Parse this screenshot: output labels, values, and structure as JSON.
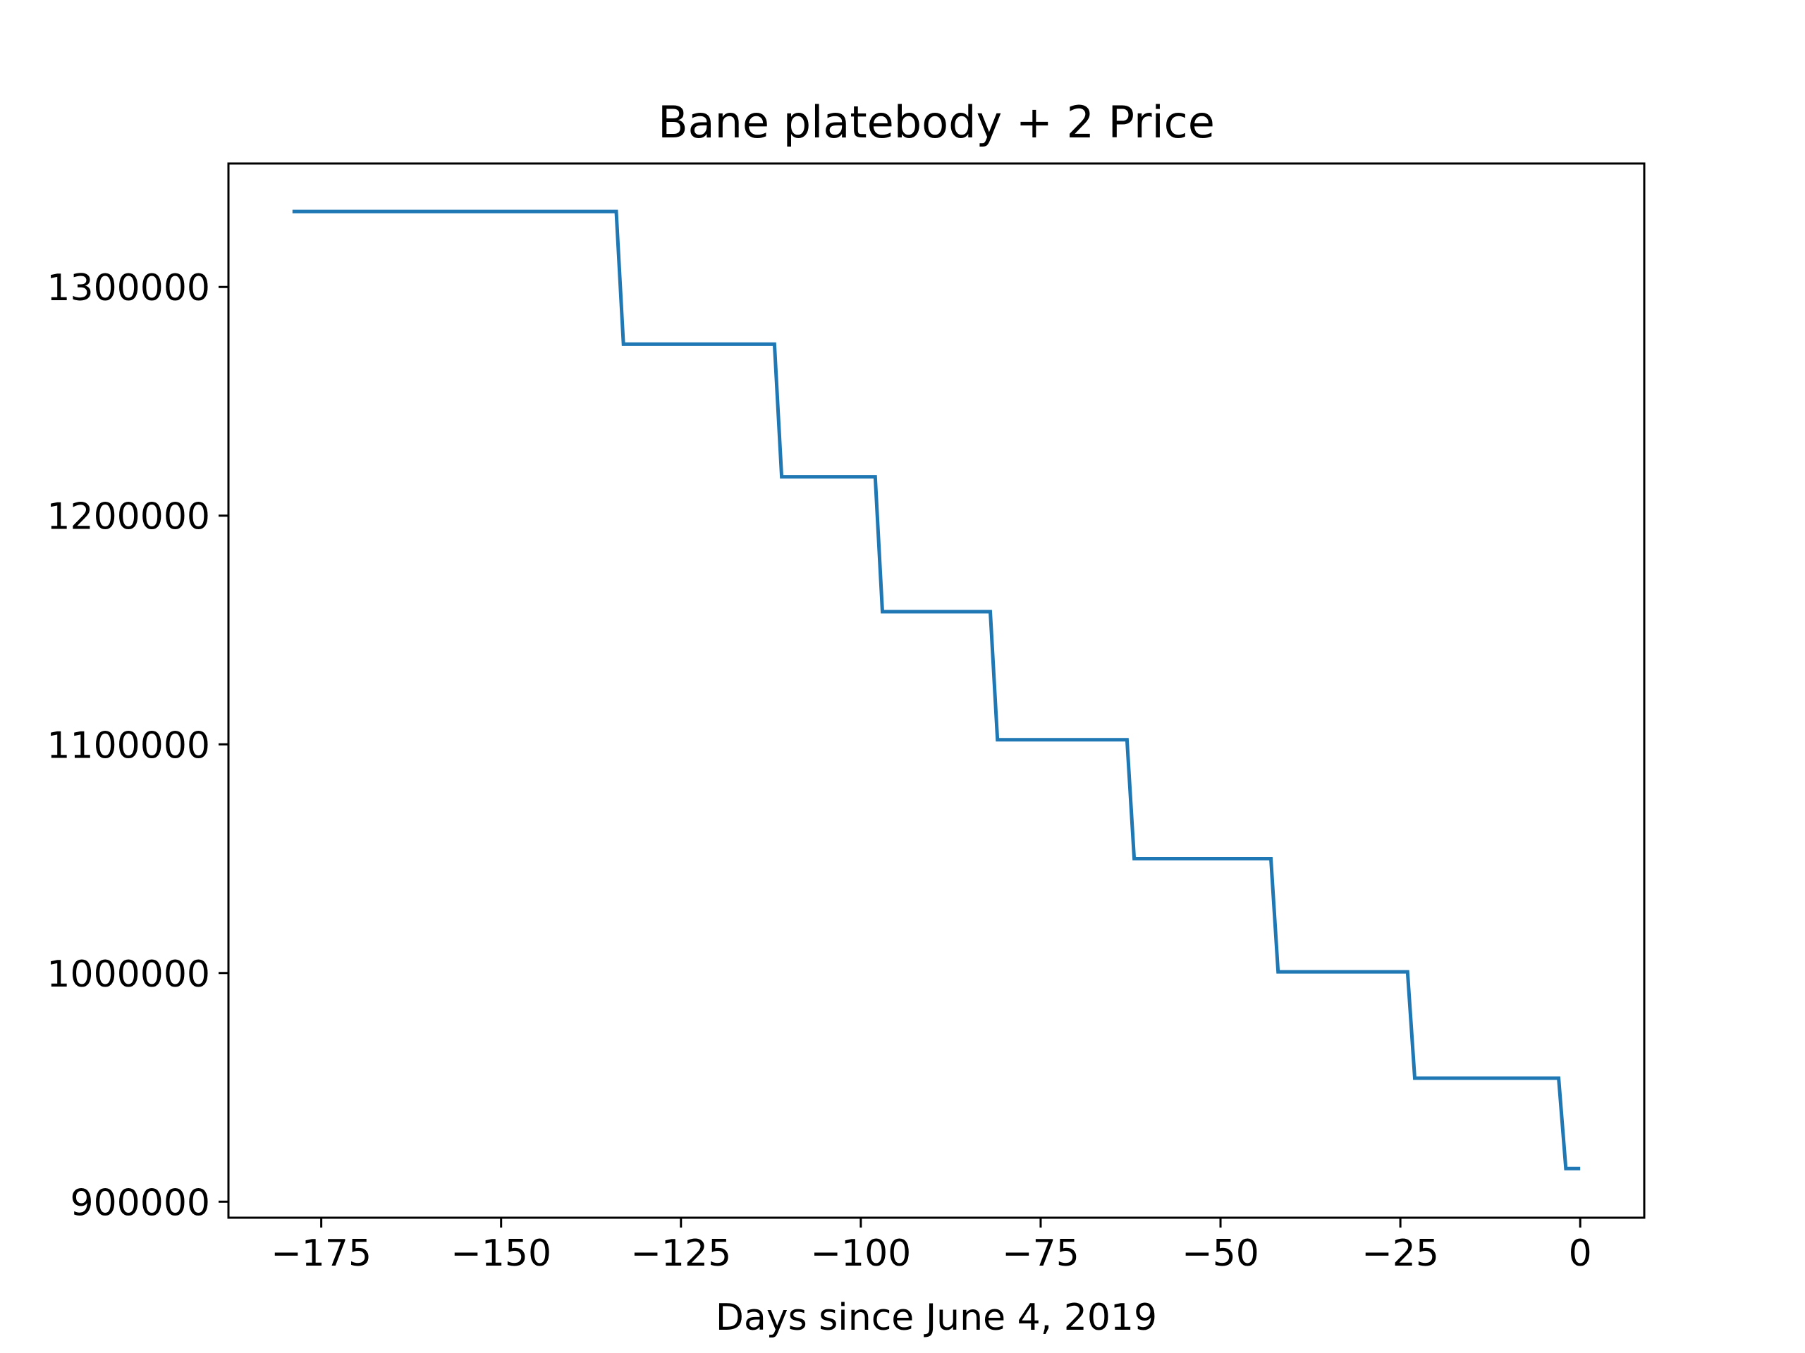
{
  "chart_data": {
    "type": "line",
    "title": "Bane platebody + 2 Price",
    "xlabel": "Days since June 4, 2019",
    "ylabel": "",
    "xlim": [
      -187.9,
      8.9
    ],
    "ylim": [
      893000,
      1354000
    ],
    "x_ticks": [
      {
        "value": -175,
        "label": "−175"
      },
      {
        "value": -150,
        "label": "−150"
      },
      {
        "value": -125,
        "label": "−125"
      },
      {
        "value": -100,
        "label": "−100"
      },
      {
        "value": -75,
        "label": "−75"
      },
      {
        "value": -50,
        "label": "−50"
      },
      {
        "value": -25,
        "label": "−25"
      },
      {
        "value": 0,
        "label": "0"
      }
    ],
    "y_ticks": [
      {
        "value": 900000,
        "label": "900000"
      },
      {
        "value": 1000000,
        "label": "1000000"
      },
      {
        "value": 1100000,
        "label": "1100000"
      },
      {
        "value": 1200000,
        "label": "1200000"
      },
      {
        "value": 1300000,
        "label": "1300000"
      }
    ],
    "grid": false,
    "series": [
      {
        "color": "#1f77b4",
        "x": [
          -179,
          -134,
          -133,
          -112,
          -111,
          -98,
          -97,
          -82,
          -81,
          -63,
          -62,
          -43,
          -42,
          -24,
          -23,
          -3,
          -2,
          0
        ],
        "y": [
          1333000,
          1333000,
          1275000,
          1275000,
          1217000,
          1217000,
          1158000,
          1158000,
          1102000,
          1102000,
          1050000,
          1050000,
          1000500,
          1000500,
          954000,
          954000,
          914500,
          914500
        ]
      }
    ]
  }
}
